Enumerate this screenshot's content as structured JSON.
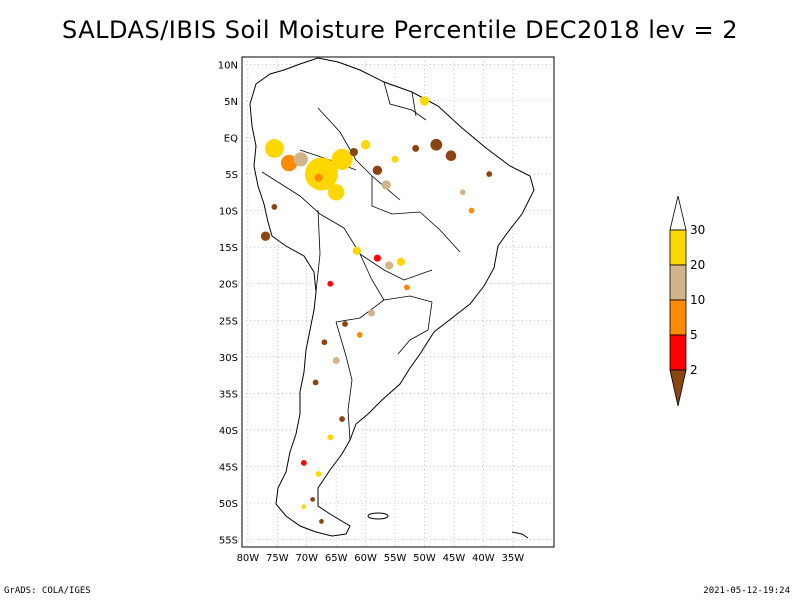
{
  "title": "SALDAS/IBIS Soil Moisture Percentile DEC2018 lev = 2",
  "footer": {
    "left": "GrADS: COLA/IGES",
    "right": "2021-05-12-19:24"
  },
  "map": {
    "lon_range": [
      -81,
      -28
    ],
    "lat_range": [
      -56,
      11
    ],
    "lon_ticks": [
      {
        "value": -80,
        "label": "80W"
      },
      {
        "value": -75,
        "label": "75W"
      },
      {
        "value": -70,
        "label": "70W"
      },
      {
        "value": -65,
        "label": "65W"
      },
      {
        "value": -60,
        "label": "60W"
      },
      {
        "value": -55,
        "label": "55W"
      },
      {
        "value": -50,
        "label": "50W"
      },
      {
        "value": -45,
        "label": "45W"
      },
      {
        "value": -40,
        "label": "40W"
      },
      {
        "value": -35,
        "label": "35W"
      }
    ],
    "lat_ticks": [
      {
        "value": 10,
        "label": "10N"
      },
      {
        "value": 5,
        "label": "5N"
      },
      {
        "value": 0,
        "label": "EQ"
      },
      {
        "value": -5,
        "label": "5S"
      },
      {
        "value": -10,
        "label": "10S"
      },
      {
        "value": -15,
        "label": "15S"
      },
      {
        "value": -20,
        "label": "20S"
      },
      {
        "value": -25,
        "label": "25S"
      },
      {
        "value": -30,
        "label": "30S"
      },
      {
        "value": -35,
        "label": "35S"
      },
      {
        "value": -40,
        "label": "40S"
      },
      {
        "value": -45,
        "label": "45S"
      },
      {
        "value": -50,
        "label": "50S"
      },
      {
        "value": -55,
        "label": "55S"
      }
    ],
    "gridlines": "dotted"
  },
  "colorbar": {
    "levels": [
      "2",
      "5",
      "10",
      "20",
      "30"
    ],
    "colors": [
      "#8b4513",
      "#ff0000",
      "#ff8c00",
      "#d2b48c",
      "#ffd700",
      "#ffffff"
    ]
  },
  "anomaly_patches": [
    {
      "lon": -75.5,
      "lat": -1.5,
      "color": "#ffd700",
      "r": 1.6
    },
    {
      "lon": -73.0,
      "lat": -3.5,
      "color": "#ff8c00",
      "r": 1.4
    },
    {
      "lon": -71.0,
      "lat": -3.0,
      "color": "#d2b48c",
      "r": 1.2
    },
    {
      "lon": -67.5,
      "lat": -5.0,
      "color": "#ffd700",
      "r": 2.8
    },
    {
      "lon": -64.0,
      "lat": -3.0,
      "color": "#ffd700",
      "r": 1.8
    },
    {
      "lon": -65.0,
      "lat": -7.5,
      "color": "#ffd700",
      "r": 1.4
    },
    {
      "lon": -68.0,
      "lat": -5.5,
      "color": "#ff8c00",
      "r": 0.7
    },
    {
      "lon": -62.0,
      "lat": -2.0,
      "color": "#8b4513",
      "r": 0.7
    },
    {
      "lon": -60.0,
      "lat": -1.0,
      "color": "#ffd700",
      "r": 0.8
    },
    {
      "lon": -58.0,
      "lat": -4.5,
      "color": "#8b4513",
      "r": 0.8
    },
    {
      "lon": -56.5,
      "lat": -6.5,
      "color": "#d2b48c",
      "r": 0.8
    },
    {
      "lon": -50.0,
      "lat": 5.0,
      "color": "#ffd700",
      "r": 0.8
    },
    {
      "lon": -48.0,
      "lat": -1.0,
      "color": "#8b4513",
      "r": 1.0
    },
    {
      "lon": -45.5,
      "lat": -2.5,
      "color": "#8b4513",
      "r": 0.9
    },
    {
      "lon": -51.5,
      "lat": -1.5,
      "color": "#8b4513",
      "r": 0.6
    },
    {
      "lon": -55.0,
      "lat": -3.0,
      "color": "#ffd700",
      "r": 0.6
    },
    {
      "lon": -43.5,
      "lat": -7.5,
      "color": "#d2b48c",
      "r": 0.5
    },
    {
      "lon": -39.0,
      "lat": -5.0,
      "color": "#8b4513",
      "r": 0.5
    },
    {
      "lon": -42.0,
      "lat": -10.0,
      "color": "#ff8c00",
      "r": 0.5
    },
    {
      "lon": -77.0,
      "lat": -13.5,
      "color": "#8b4513",
      "r": 0.8
    },
    {
      "lon": -75.5,
      "lat": -9.5,
      "color": "#8b4513",
      "r": 0.5
    },
    {
      "lon": -61.5,
      "lat": -15.5,
      "color": "#ffd700",
      "r": 0.7
    },
    {
      "lon": -58.0,
      "lat": -16.5,
      "color": "#ff0000",
      "r": 0.6
    },
    {
      "lon": -56.0,
      "lat": -17.5,
      "color": "#d2b48c",
      "r": 0.7
    },
    {
      "lon": -54.0,
      "lat": -17.0,
      "color": "#ffd700",
      "r": 0.7
    },
    {
      "lon": -66.0,
      "lat": -20.0,
      "color": "#ff0000",
      "r": 0.5
    },
    {
      "lon": -53.0,
      "lat": -20.5,
      "color": "#ff8c00",
      "r": 0.5
    },
    {
      "lon": -59.0,
      "lat": -24.0,
      "color": "#d2b48c",
      "r": 0.6
    },
    {
      "lon": -63.5,
      "lat": -25.5,
      "color": "#8b4513",
      "r": 0.5
    },
    {
      "lon": -61.0,
      "lat": -27.0,
      "color": "#ff8c00",
      "r": 0.5
    },
    {
      "lon": -67.0,
      "lat": -28.0,
      "color": "#8b4513",
      "r": 0.5
    },
    {
      "lon": -65.0,
      "lat": -30.5,
      "color": "#d2b48c",
      "r": 0.6
    },
    {
      "lon": -68.5,
      "lat": -33.5,
      "color": "#8b4513",
      "r": 0.5
    },
    {
      "lon": -64.0,
      "lat": -38.5,
      "color": "#8b4513",
      "r": 0.5
    },
    {
      "lon": -66.0,
      "lat": -41.0,
      "color": "#ffd700",
      "r": 0.5
    },
    {
      "lon": -70.5,
      "lat": -44.5,
      "color": "#ff0000",
      "r": 0.5
    },
    {
      "lon": -68.0,
      "lat": -46.0,
      "color": "#ffd700",
      "r": 0.5
    },
    {
      "lon": -69.0,
      "lat": -49.5,
      "color": "#8b4513",
      "r": 0.4
    },
    {
      "lon": -67.5,
      "lat": -52.5,
      "color": "#8b4513",
      "r": 0.4
    },
    {
      "lon": -70.5,
      "lat": -50.5,
      "color": "#ffd700",
      "r": 0.4
    }
  ]
}
